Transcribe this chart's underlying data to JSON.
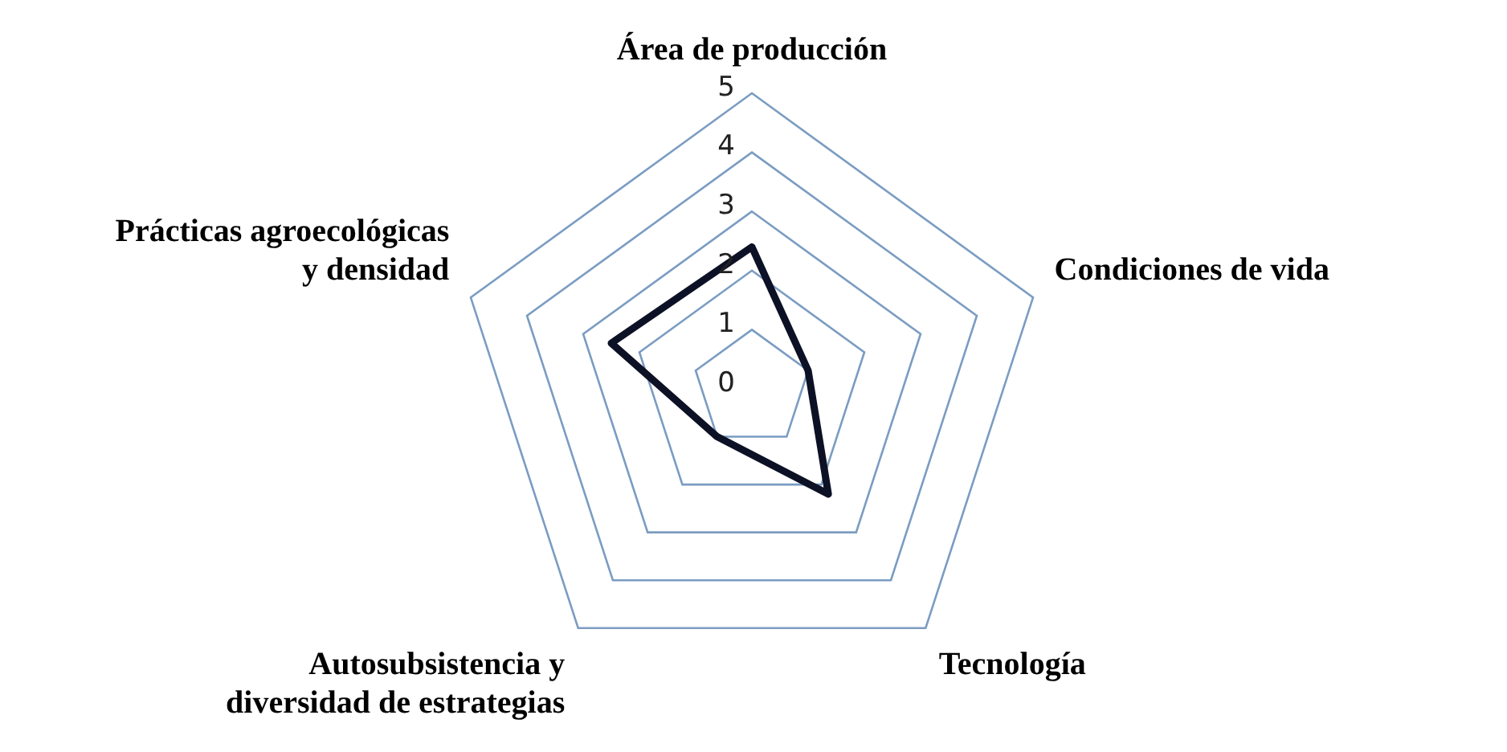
{
  "chart_data": {
    "type": "radar",
    "categories": [
      "Área de producción",
      "Condiciones de vida",
      "Tecnología",
      "Autosubsistencia y diversidad de estrategias",
      "Prácticas agroecológicas y densidad"
    ],
    "series": [
      {
        "color": "#0d1126",
        "values": [
          2.4,
          1,
          2.2,
          1,
          2.5
        ]
      }
    ],
    "ylim": [
      0,
      5
    ],
    "yticks": [
      0,
      1,
      2,
      3,
      4,
      5
    ],
    "grid": true,
    "marker": "none",
    "line_style": "solid"
  }
}
